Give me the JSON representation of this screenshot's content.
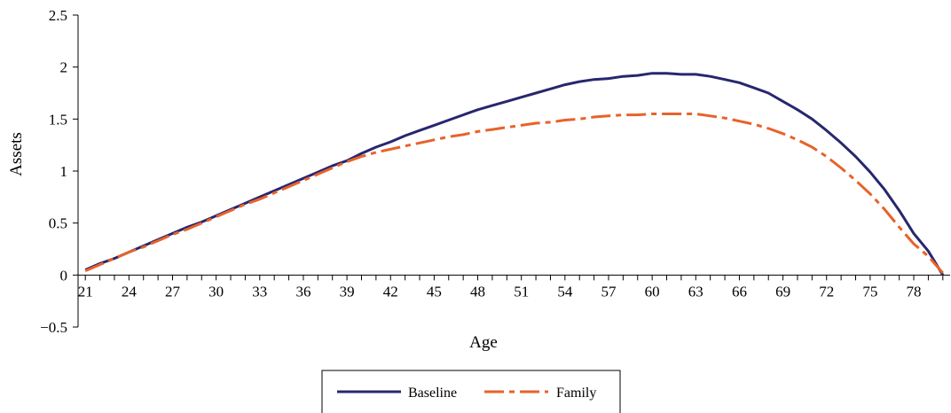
{
  "chart_data": {
    "type": "line",
    "title": "",
    "xlabel": "Age",
    "ylabel": "Assets",
    "ylim": [
      -0.5,
      2.5
    ],
    "yticks": [
      "2.5",
      "2",
      "1.5",
      "1",
      "0.5",
      "0",
      "−0.5"
    ],
    "ytick_values": [
      2.5,
      2,
      1.5,
      1,
      0.5,
      0,
      -0.5
    ],
    "xticks": [
      "21",
      "24",
      "27",
      "30",
      "33",
      "36",
      "39",
      "42",
      "45",
      "48",
      "51",
      "54",
      "57",
      "60",
      "63",
      "66",
      "69",
      "72",
      "75",
      "78"
    ],
    "xtick_values": [
      21,
      24,
      27,
      30,
      33,
      36,
      39,
      42,
      45,
      48,
      51,
      54,
      57,
      60,
      63,
      66,
      69,
      72,
      75,
      78
    ],
    "xlim": [
      20.5,
      80.5
    ],
    "grid": false,
    "legend_position": "bottom-center",
    "x": [
      21,
      22,
      23,
      24,
      25,
      26,
      27,
      28,
      29,
      30,
      31,
      32,
      33,
      34,
      35,
      36,
      37,
      38,
      39,
      40,
      41,
      42,
      43,
      44,
      45,
      46,
      47,
      48,
      49,
      50,
      51,
      52,
      53,
      54,
      55,
      56,
      57,
      58,
      59,
      60,
      61,
      62,
      63,
      64,
      65,
      66,
      67,
      68,
      69,
      70,
      71,
      72,
      73,
      74,
      75,
      76,
      77,
      78,
      79,
      80
    ],
    "series": [
      {
        "name": "Baseline",
        "color": "#27276e",
        "style": "solid",
        "values": [
          0.05,
          0.11,
          0.16,
          0.22,
          0.28,
          0.34,
          0.4,
          0.46,
          0.51,
          0.57,
          0.63,
          0.69,
          0.75,
          0.81,
          0.87,
          0.93,
          0.99,
          1.05,
          1.1,
          1.17,
          1.23,
          1.28,
          1.34,
          1.39,
          1.44,
          1.49,
          1.54,
          1.59,
          1.63,
          1.67,
          1.71,
          1.75,
          1.79,
          1.83,
          1.86,
          1.88,
          1.89,
          1.91,
          1.92,
          1.94,
          1.94,
          1.93,
          1.93,
          1.91,
          1.88,
          1.85,
          1.8,
          1.75,
          1.67,
          1.59,
          1.5,
          1.39,
          1.27,
          1.14,
          0.99,
          0.82,
          0.62,
          0.4,
          0.23,
          0.0
        ]
      },
      {
        "name": "Family",
        "color": "#e8622a",
        "style": "dashdot",
        "values": [
          0.04,
          0.1,
          0.16,
          0.22,
          0.27,
          0.33,
          0.39,
          0.44,
          0.5,
          0.56,
          0.62,
          0.68,
          0.73,
          0.79,
          0.85,
          0.91,
          0.97,
          1.03,
          1.09,
          1.14,
          1.18,
          1.21,
          1.24,
          1.27,
          1.3,
          1.33,
          1.35,
          1.38,
          1.4,
          1.42,
          1.44,
          1.46,
          1.47,
          1.49,
          1.5,
          1.52,
          1.53,
          1.54,
          1.54,
          1.55,
          1.55,
          1.55,
          1.55,
          1.53,
          1.51,
          1.48,
          1.45,
          1.41,
          1.36,
          1.3,
          1.23,
          1.14,
          1.03,
          0.91,
          0.78,
          0.63,
          0.46,
          0.3,
          0.18,
          0.02
        ]
      }
    ]
  }
}
